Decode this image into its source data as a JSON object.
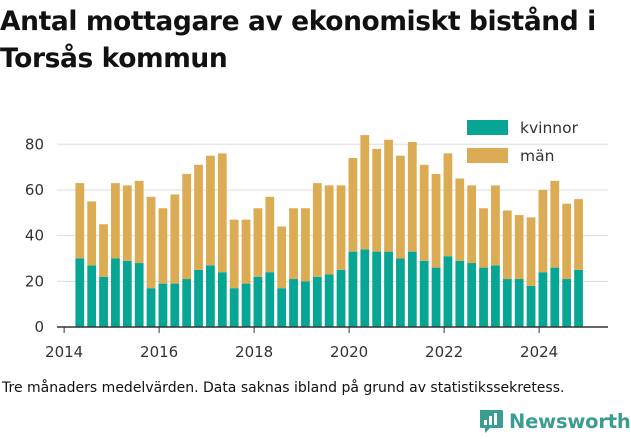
{
  "title": "Antal mottagare av ekonomiskt bistånd i Torsås kommun",
  "caption": "Tre månaders medelvärden. Data saknas ibland på grund av statistikssekretess.",
  "brand": {
    "name": "Newsworthy",
    "logo_icon": "newsworthy-chart-logo-icon"
  },
  "colors": {
    "kvinnor": "#07a594",
    "man": "#dcac54",
    "axis": "#333333",
    "grid": "#dddddd"
  },
  "chart_data": {
    "type": "bar",
    "stacked": true,
    "title": "Antal mottagare av ekonomiskt bistånd i Torsås kommun",
    "xlabel": "",
    "ylabel": "",
    "ylim": [
      0,
      88
    ],
    "xlim": [
      2013.85,
      2025.45
    ],
    "yticks": [
      0,
      20,
      40,
      60,
      80
    ],
    "xticks": [
      2014,
      2016,
      2018,
      2020,
      2022,
      2024
    ],
    "legend_position": "top-right",
    "x": [
      2014.33,
      2014.58,
      2014.83,
      2015.08,
      2015.33,
      2015.58,
      2015.83,
      2016.08,
      2016.33,
      2016.58,
      2016.83,
      2017.08,
      2017.33,
      2017.58,
      2017.83,
      2018.08,
      2018.33,
      2018.58,
      2018.83,
      2019.08,
      2019.33,
      2019.58,
      2019.83,
      2020.08,
      2020.33,
      2020.58,
      2020.83,
      2021.08,
      2021.33,
      2021.58,
      2021.83,
      2022.08,
      2022.33,
      2022.58,
      2022.83,
      2023.08,
      2023.33,
      2023.58,
      2023.83,
      2024.08,
      2024.33,
      2024.58,
      2024.83
    ],
    "series": [
      {
        "name": "kvinnor",
        "values": [
          30,
          27,
          22,
          30,
          29,
          28,
          17,
          19,
          19,
          21,
          25,
          27,
          24,
          17,
          19,
          22,
          24,
          17,
          21,
          20,
          22,
          23,
          25,
          33,
          34,
          33,
          33,
          30,
          33,
          29,
          26,
          31,
          29,
          28,
          26,
          27,
          21,
          21,
          18,
          24,
          26,
          21,
          25
        ]
      },
      {
        "name": "män",
        "values": [
          33,
          28,
          23,
          33,
          33,
          36,
          40,
          33,
          39,
          46,
          46,
          48,
          52,
          30,
          28,
          30,
          33,
          27,
          31,
          32,
          41,
          39,
          37,
          41,
          50,
          45,
          49,
          45,
          48,
          42,
          41,
          45,
          36,
          34,
          26,
          35,
          30,
          28,
          30,
          36,
          38,
          33,
          31
        ]
      }
    ]
  }
}
